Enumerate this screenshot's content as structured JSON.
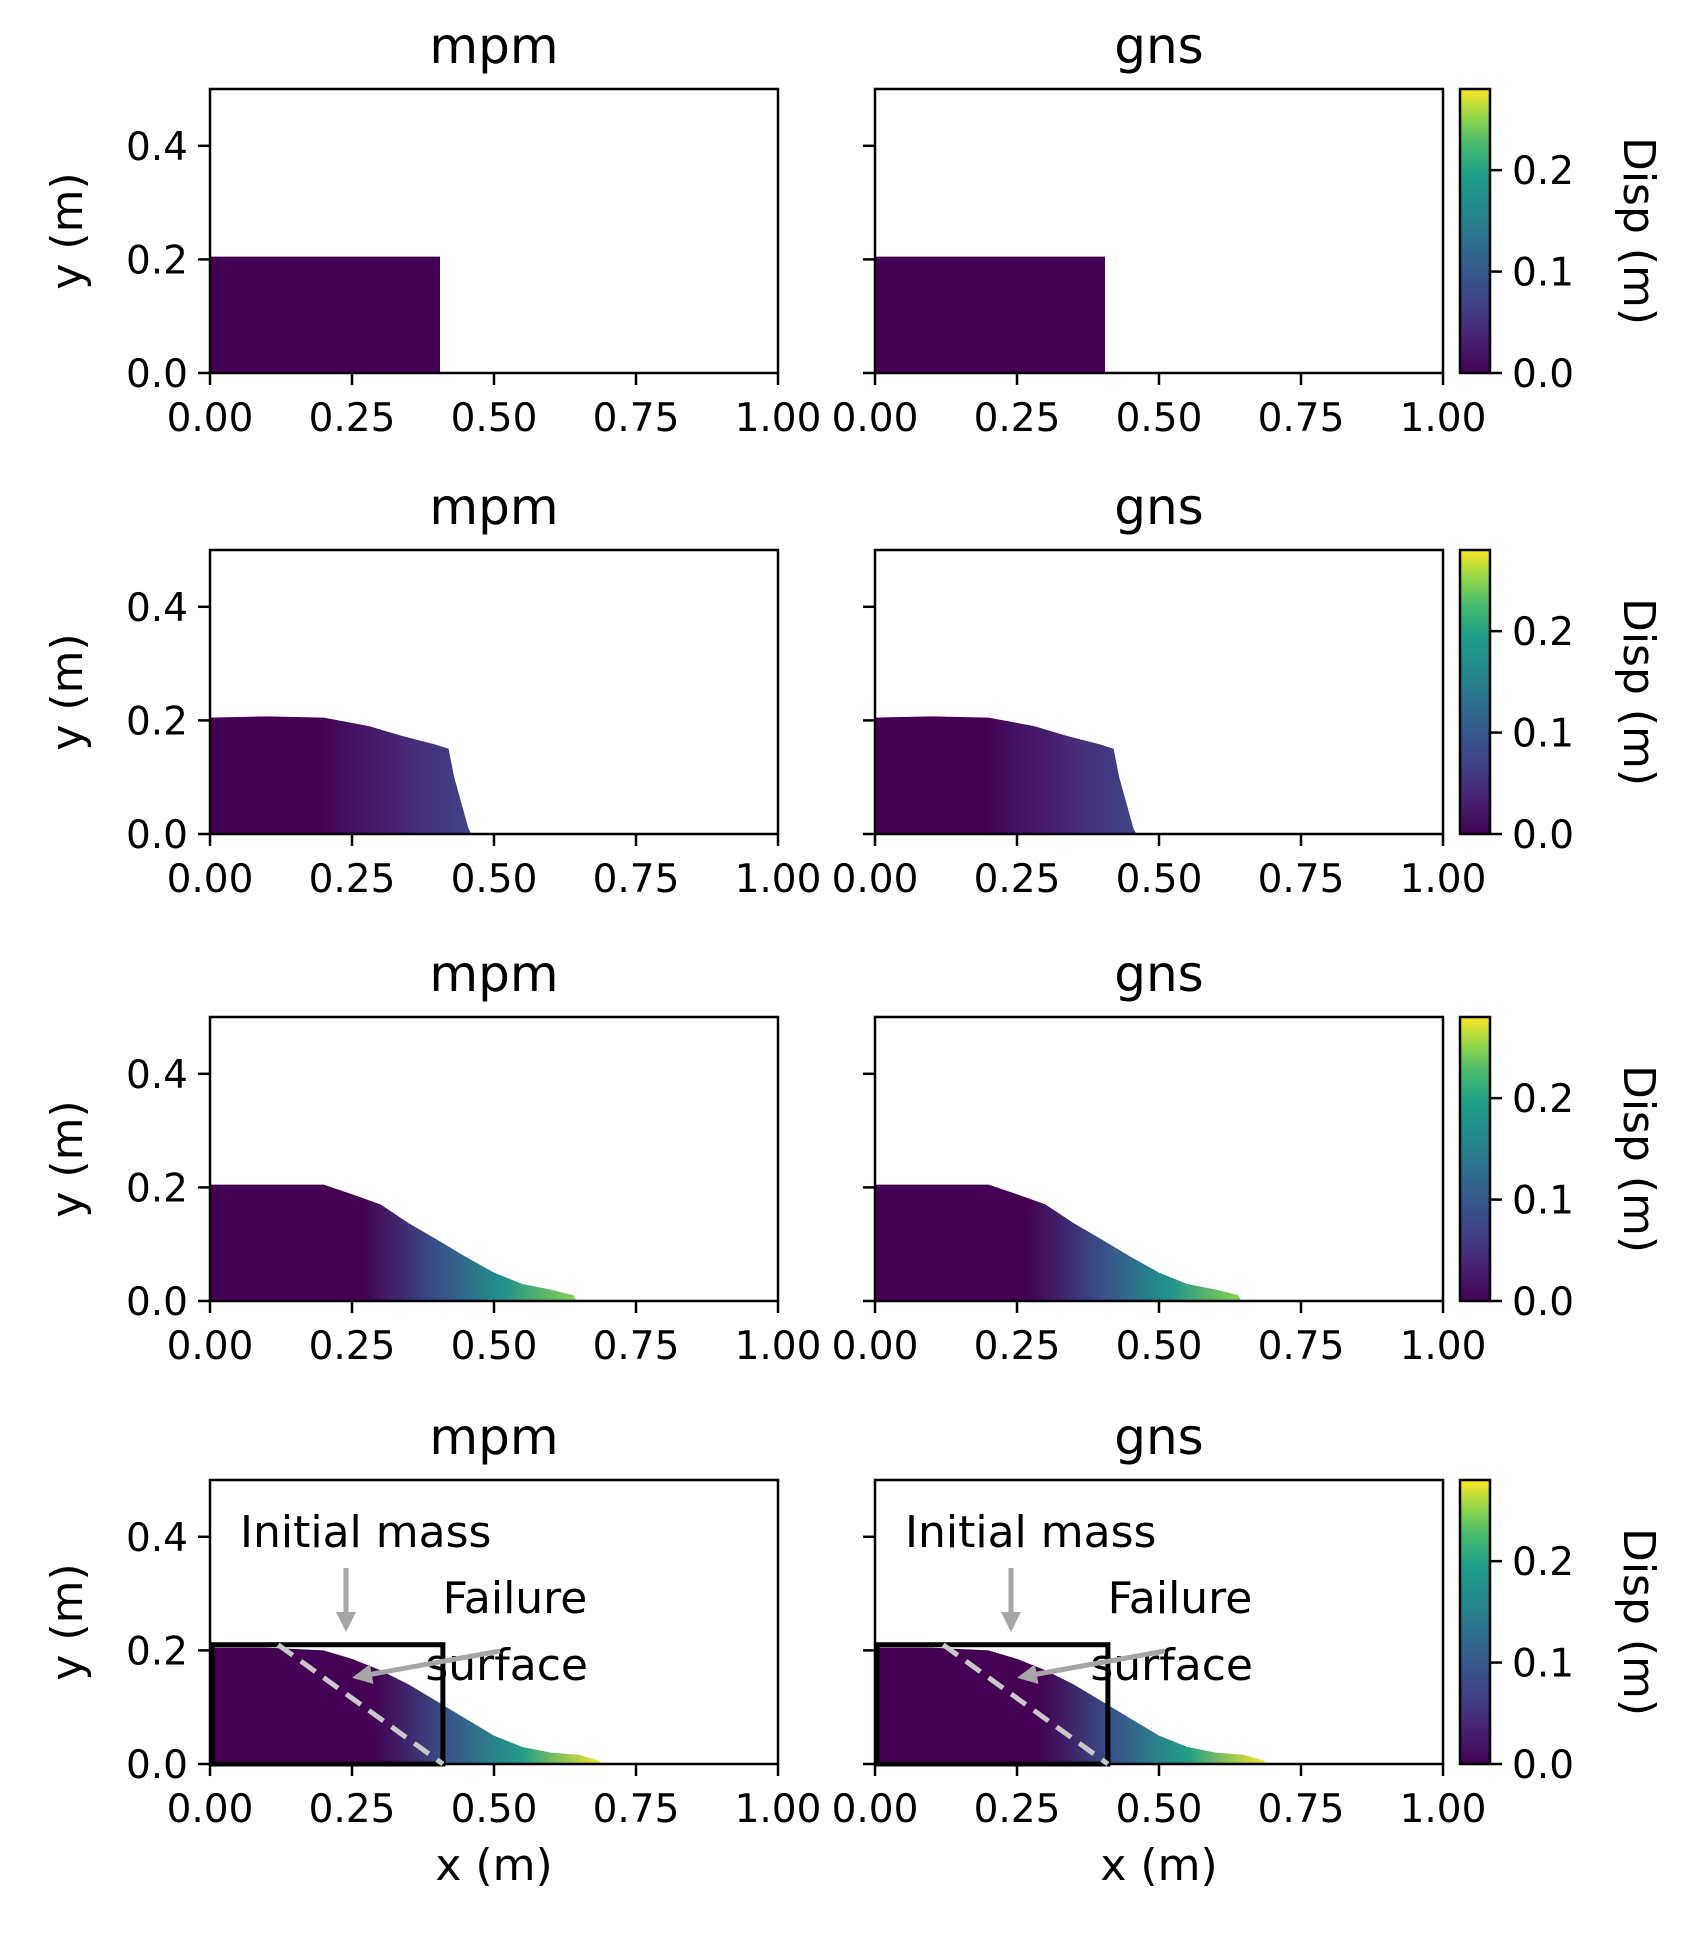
{
  "chart_data": {
    "type": "scatter",
    "figure_title": "",
    "layout": "4 rows x 2 columns",
    "colorbar": {
      "label": "Disp (m)",
      "range": [
        0,
        0.28
      ],
      "ticks": [
        "0.0",
        "0.1",
        "0.2"
      ],
      "colormap": "viridis"
    },
    "xticks": [
      "0.00",
      "0.25",
      "0.50",
      "0.75",
      "1.00"
    ],
    "yticks": [
      "0.0",
      "0.2",
      "0.4"
    ],
    "xlim": [
      0,
      1
    ],
    "ylim": [
      0,
      0.5
    ],
    "xlabel": "x (m)",
    "ylabel": "y (m)",
    "column_titles": [
      "mpm",
      "gns"
    ],
    "rows": [
      {
        "profile": [
          [
            0,
            0.205
          ],
          [
            0.2,
            0.205
          ],
          [
            0.405,
            0.205
          ],
          [
            0.405,
            0
          ]
        ],
        "runout": 0.405,
        "max_disp": 0.0
      },
      {
        "profile": [
          [
            0,
            0.205
          ],
          [
            0.1,
            0.207
          ],
          [
            0.2,
            0.205
          ],
          [
            0.28,
            0.19
          ],
          [
            0.34,
            0.172
          ],
          [
            0.395,
            0.158
          ],
          [
            0.42,
            0.15
          ],
          [
            0.43,
            0.1
          ],
          [
            0.455,
            0.01
          ],
          [
            0.46,
            0
          ]
        ],
        "runout": 0.46,
        "max_disp": 0.07
      },
      {
        "profile": [
          [
            0,
            0.205
          ],
          [
            0.1,
            0.205
          ],
          [
            0.2,
            0.205
          ],
          [
            0.25,
            0.188
          ],
          [
            0.3,
            0.17
          ],
          [
            0.35,
            0.137
          ],
          [
            0.4,
            0.108
          ],
          [
            0.45,
            0.078
          ],
          [
            0.5,
            0.05
          ],
          [
            0.55,
            0.03
          ],
          [
            0.6,
            0.02
          ],
          [
            0.64,
            0.01
          ],
          [
            0.645,
            0
          ]
        ],
        "runout": 0.645,
        "max_disp": 0.25
      },
      {
        "profile": [
          [
            0,
            0.205
          ],
          [
            0.1,
            0.205
          ],
          [
            0.2,
            0.2
          ],
          [
            0.25,
            0.185
          ],
          [
            0.3,
            0.165
          ],
          [
            0.35,
            0.14
          ],
          [
            0.4,
            0.11
          ],
          [
            0.45,
            0.08
          ],
          [
            0.5,
            0.05
          ],
          [
            0.55,
            0.03
          ],
          [
            0.6,
            0.02
          ],
          [
            0.65,
            0.016
          ],
          [
            0.685,
            0.006
          ],
          [
            0.69,
            0
          ]
        ],
        "runout": 0.69,
        "max_disp": 0.28
      }
    ],
    "annotations": {
      "initial_mass": "Initial mass",
      "failure_surface_line1": "Failure",
      "failure_surface_line2": "surface",
      "initial_box": [
        0,
        0.41,
        0,
        0.21
      ],
      "failure_line": [
        [
          0.12,
          0.21
        ],
        [
          0.41,
          0.0
        ]
      ]
    }
  }
}
